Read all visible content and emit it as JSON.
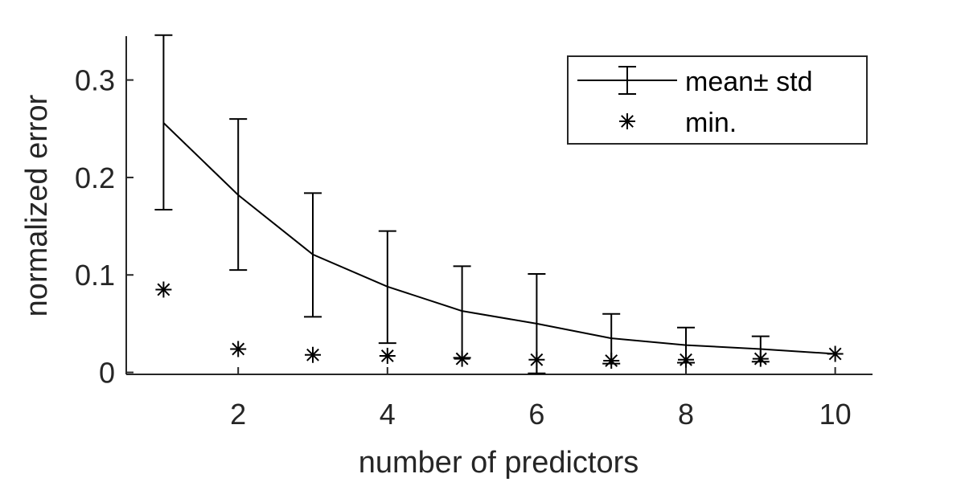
{
  "chart_data": {
    "type": "line",
    "xlabel": "number of predictors",
    "ylabel": "normalized error",
    "xlim": [
      0.5,
      10.5
    ],
    "ylim": [
      -0.002,
      0.345
    ],
    "xticks": [
      "2",
      "4",
      "6",
      "8",
      "10"
    ],
    "yticks": [
      "0",
      "0.1",
      "0.2",
      "0.3"
    ],
    "grid": false,
    "legend_position": "top-right",
    "series": [
      {
        "name": "mean± std",
        "style": "line-errorbar",
        "x": [
          1,
          2,
          3,
          4,
          5,
          6,
          7,
          8,
          9,
          10
        ],
        "values": [
          0.256,
          0.182,
          0.121,
          0.088,
          0.063,
          0.05,
          0.035,
          0.028,
          0.024,
          0.019
        ],
        "upper": [
          0.346,
          0.26,
          0.184,
          0.145,
          0.109,
          0.101,
          0.06,
          0.046,
          0.037,
          0.019
        ],
        "lower": [
          0.167,
          0.105,
          0.057,
          0.03,
          0.015,
          -0.001,
          0.009,
          0.01,
          0.011,
          0.019
        ]
      },
      {
        "name": "min.",
        "style": "asterisk",
        "x": [
          1,
          2,
          3,
          4,
          5,
          6,
          7,
          8,
          9,
          10
        ],
        "values": [
          0.085,
          0.024,
          0.018,
          0.017,
          0.014,
          0.013,
          0.012,
          0.013,
          0.014,
          0.019
        ]
      }
    ],
    "colors": {
      "line": "#000000",
      "axis": "#262626"
    }
  }
}
